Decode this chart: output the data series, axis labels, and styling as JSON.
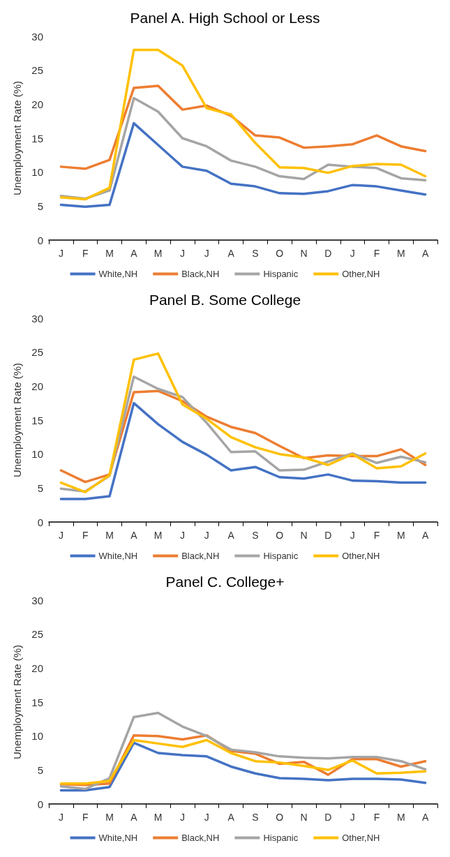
{
  "chart_data": [
    {
      "type": "line",
      "title": "Panel A. High School or Less",
      "ylabel": "Unemployment Rate (%)",
      "categories": [
        "J",
        "F",
        "M",
        "A",
        "M",
        "J",
        "J",
        "A",
        "S",
        "O",
        "N",
        "D",
        "J",
        "F",
        "M",
        "A"
      ],
      "ylim": [
        0,
        30
      ],
      "yticks": [
        0,
        5,
        10,
        15,
        20,
        25,
        30
      ],
      "grid": false,
      "legend": "bottom",
      "marker": "none",
      "series": [
        {
          "name": "White,NH",
          "color": "#4472c4",
          "values": [
            5.2,
            4.9,
            5.2,
            17.2,
            14,
            10.8,
            10.2,
            8.3,
            7.9,
            6.9,
            6.8,
            7.2,
            8.1,
            7.9,
            7.3,
            6.7
          ]
        },
        {
          "name": "Black,NH",
          "color": "#ed7d31",
          "values": [
            10.8,
            10.5,
            11.8,
            22.4,
            22.7,
            19.2,
            19.8,
            18.3,
            15.4,
            15.1,
            13.6,
            13.8,
            14.1,
            15.4,
            13.8,
            13.1
          ]
        },
        {
          "name": "Hispanic",
          "color": "#a5a5a5",
          "values": [
            6.5,
            6.1,
            7.3,
            20.9,
            18.9,
            15,
            13.8,
            11.7,
            10.8,
            9.4,
            9,
            11.1,
            10.8,
            10.6,
            9.1,
            8.8
          ]
        },
        {
          "name": "Other,NH",
          "color": "#ffc000",
          "values": [
            6.3,
            6,
            7.7,
            28,
            28,
            25.7,
            19.4,
            18.5,
            14.3,
            10.7,
            10.6,
            9.9,
            10.9,
            11.2,
            11.1,
            9.4
          ]
        }
      ]
    },
    {
      "type": "line",
      "title": "Panel B. Some College",
      "ylabel": "Unemployment Rate (%)",
      "categories": [
        "J",
        "F",
        "M",
        "A",
        "M",
        "J",
        "J",
        "A",
        "S",
        "O",
        "N",
        "D",
        "J",
        "F",
        "M",
        "A"
      ],
      "ylim": [
        0,
        30
      ],
      "yticks": [
        0,
        5,
        10,
        15,
        20,
        25,
        30
      ],
      "grid": false,
      "legend": "bottom",
      "marker": "none",
      "series": [
        {
          "name": "White,NH",
          "color": "#4472c4",
          "values": [
            3.4,
            3.4,
            3.8,
            17.5,
            14.4,
            11.8,
            9.9,
            7.6,
            8.1,
            6.6,
            6.4,
            7,
            6.1,
            6,
            5.8,
            5.8
          ]
        },
        {
          "name": "Black,NH",
          "color": "#ed7d31",
          "values": [
            7.6,
            5.9,
            7,
            19.1,
            19.3,
            17.8,
            15.5,
            14,
            13.1,
            11.2,
            9.4,
            9.8,
            9.7,
            9.7,
            10.7,
            8.4
          ]
        },
        {
          "name": "Hispanic",
          "color": "#a5a5a5",
          "values": [
            4.9,
            4.5,
            6.8,
            21.4,
            19.6,
            18.4,
            14.6,
            10.3,
            10.4,
            7.6,
            7.7,
            8.9,
            10.1,
            8.7,
            9.6,
            8.8
          ]
        },
        {
          "name": "Other,NH",
          "color": "#ffc000",
          "values": [
            5.8,
            4.4,
            6.9,
            23.9,
            24.8,
            17.3,
            15.2,
            12.5,
            11,
            10,
            9.5,
            8.4,
            10,
            7.9,
            8.2,
            10.1
          ]
        }
      ]
    },
    {
      "type": "line",
      "title": "Panel C. College+",
      "ylabel": "Unemployment Rate (%)",
      "categories": [
        "J",
        "F",
        "M",
        "A",
        "M",
        "J",
        "J",
        "A",
        "S",
        "O",
        "N",
        "D",
        "J",
        "F",
        "M",
        "A"
      ],
      "ylim": [
        0,
        30
      ],
      "yticks": [
        0,
        5,
        10,
        15,
        20,
        25,
        30
      ],
      "grid": false,
      "legend": "bottom",
      "marker": "none",
      "series": [
        {
          "name": "White,NH",
          "color": "#4472c4",
          "values": [
            2,
            2,
            2.5,
            9,
            7.5,
            7.2,
            7,
            5.5,
            4.5,
            3.8,
            3.7,
            3.5,
            3.7,
            3.7,
            3.6,
            3.1
          ]
        },
        {
          "name": "Black,NH",
          "color": "#ed7d31",
          "values": [
            2.9,
            2.8,
            3,
            10.1,
            10,
            9.5,
            10.1,
            7.8,
            7.4,
            5.9,
            6.2,
            4.3,
            6.6,
            6.6,
            5.5,
            6.3
          ]
        },
        {
          "name": "Hispanic",
          "color": "#a5a5a5",
          "values": [
            2.6,
            2.2,
            3.8,
            12.8,
            13.4,
            11.4,
            10,
            8,
            7.6,
            7,
            6.8,
            6.7,
            6.9,
            6.9,
            6.3,
            5.1
          ]
        },
        {
          "name": "Other,NH",
          "color": "#ffc000",
          "values": [
            3,
            3,
            3.4,
            9.4,
            8.9,
            8.4,
            9.4,
            7.5,
            6.3,
            6.1,
            5.6,
            5,
            6.4,
            4.5,
            4.6,
            4.8
          ]
        }
      ]
    }
  ]
}
